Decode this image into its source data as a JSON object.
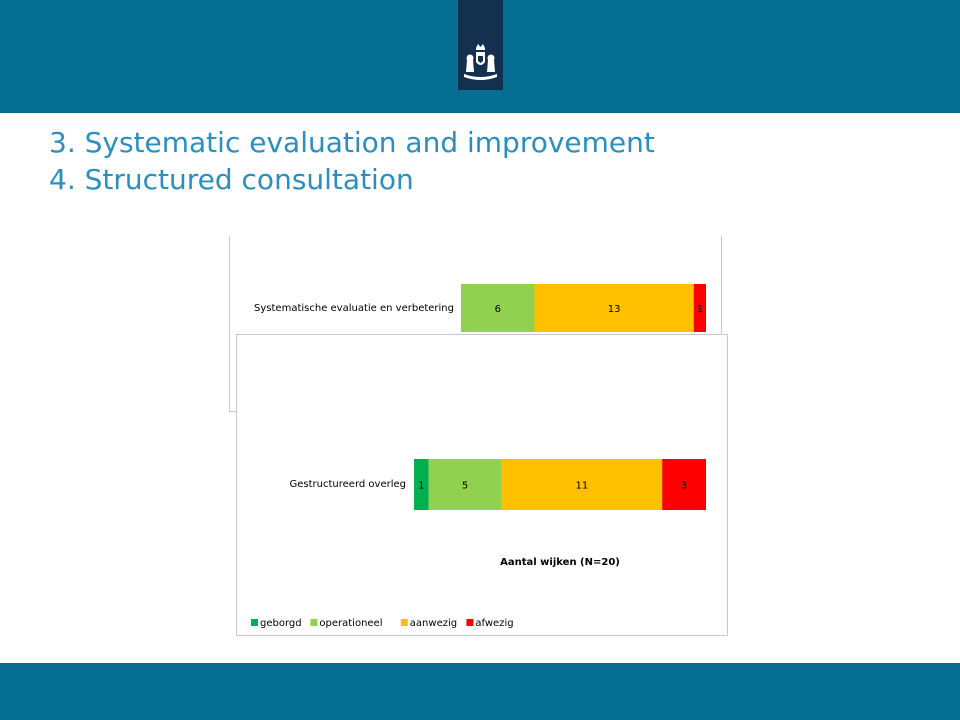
{
  "slide": {
    "title_line1": "3. Systematic evaluation and improvement",
    "title_line2": "4. Structured consultation",
    "logo": "dutch-royal-coat-of-arms-icon",
    "colors": {
      "band": "#066e93",
      "logo_bg": "#14304f",
      "title": "#2a8fc0"
    }
  },
  "chart_data": [
    {
      "type": "bar",
      "orientation": "horizontal",
      "stacked": true,
      "categories": [
        "Systematische evaluatie en verbetering"
      ],
      "series": [
        {
          "name": "geborgd",
          "color": "#00b050",
          "values": [
            0
          ],
          "labels": [
            ""
          ]
        },
        {
          "name": "operationeel",
          "color": "#92d050",
          "values": [
            6
          ],
          "labels": [
            "6"
          ]
        },
        {
          "name": "aanwezig",
          "color": "#ffc000",
          "values": [
            13
          ],
          "labels": [
            "13"
          ]
        },
        {
          "name": "afwezig",
          "color": "#ff0000",
          "values": [
            1
          ],
          "labels": [
            "1"
          ]
        }
      ],
      "xlim": [
        0,
        20
      ]
    },
    {
      "type": "bar",
      "orientation": "horizontal",
      "stacked": true,
      "categories": [
        "Gestructureerd overleg"
      ],
      "series": [
        {
          "name": "geborgd",
          "color": "#00b050",
          "values": [
            1
          ],
          "labels": [
            "1"
          ]
        },
        {
          "name": "operationeel",
          "color": "#92d050",
          "values": [
            5
          ],
          "labels": [
            "5"
          ]
        },
        {
          "name": "aanwezig",
          "color": "#ffc000",
          "values": [
            11
          ],
          "labels": [
            "11"
          ]
        },
        {
          "name": "afwezig",
          "color": "#ff0000",
          "values": [
            3
          ],
          "labels": [
            "3"
          ]
        }
      ],
      "xlim": [
        0,
        20
      ],
      "xlabel": "Aantal wijken (N=20)",
      "legend": "bottom-left"
    }
  ]
}
